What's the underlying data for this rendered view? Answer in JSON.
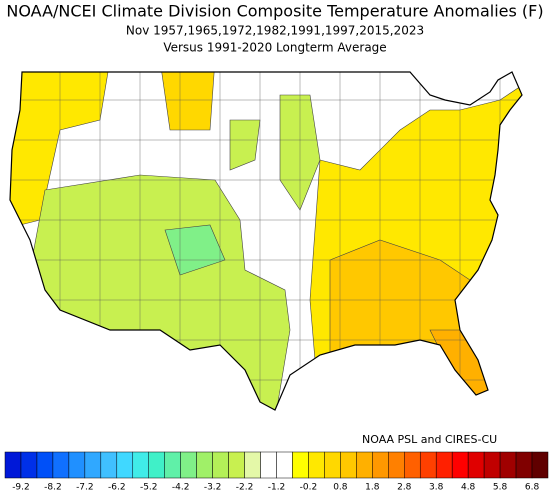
{
  "title": "NOAA/NCEI Climate Division Composite Temperature Anomalies (F)",
  "subtitle": "Nov  1957,1965,1972,1982,1991,1997,2015,2023",
  "subtitle2": "Versus 1991-2020 Longterm Average",
  "credit": "NOAA PSL and CIRES-CU",
  "colorbar": {
    "colors": [
      "#0018d8",
      "#0030e8",
      "#0050f8",
      "#1070ff",
      "#2090ff",
      "#30a8ff",
      "#40c0ff",
      "#40d8ff",
      "#40ece8",
      "#40f0c8",
      "#60f0a8",
      "#80f088",
      "#a0f068",
      "#b4f058",
      "#c8f050",
      "#e4f8a8",
      "#ffffff",
      "#ffffff",
      "#ffff00",
      "#ffe800",
      "#ffd800",
      "#ffc800",
      "#ffb000",
      "#ff9800",
      "#ff8000",
      "#ff6000",
      "#ff4000",
      "#ff2000",
      "#ff0000",
      "#e00000",
      "#c00000",
      "#a00000",
      "#800000",
      "#600000"
    ],
    "labels": [
      "-9.2",
      "-8.2",
      "-7.2",
      "-6.2",
      "-5.2",
      "-4.2",
      "-3.2",
      "-2.2",
      "-1.2",
      "-0.2",
      "0.8",
      "1.8",
      "2.8",
      "3.8",
      "4.8",
      "5.8",
      "6.8"
    ]
  }
}
